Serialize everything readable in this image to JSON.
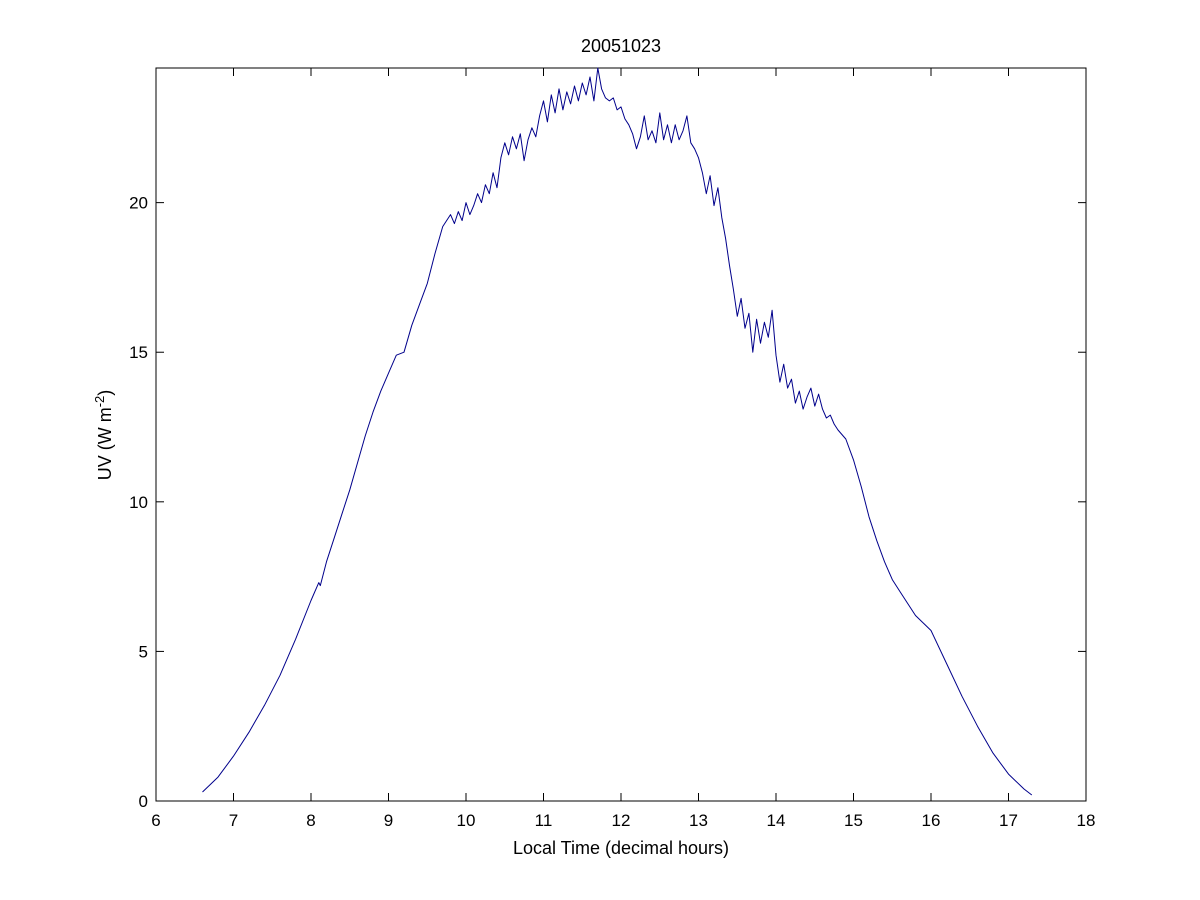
{
  "chart_data": {
    "type": "line",
    "title": "20051023",
    "xlabel": "Local Time (decimal hours)",
    "ylabel": {
      "main": "UV (W m",
      "superscript": "-2",
      "close": ")"
    },
    "xlim": [
      6,
      18
    ],
    "ylim": [
      0,
      24.5
    ],
    "xticks": [
      6,
      7,
      8,
      9,
      10,
      11,
      12,
      13,
      14,
      15,
      16,
      17,
      18
    ],
    "yticks": [
      0,
      5,
      10,
      15,
      20
    ],
    "grid": false,
    "legend": "none",
    "series": [
      {
        "color": "#00008b",
        "x": [
          6.6,
          6.8,
          7.0,
          7.2,
          7.4,
          7.6,
          7.8,
          8.0,
          8.1,
          8.12,
          8.2,
          8.3,
          8.4,
          8.5,
          8.6,
          8.7,
          8.8,
          8.9,
          9.0,
          9.1,
          9.2,
          9.3,
          9.4,
          9.5,
          9.6,
          9.7,
          9.8,
          9.85,
          9.9,
          9.95,
          10.0,
          10.05,
          10.1,
          10.15,
          10.2,
          10.25,
          10.3,
          10.35,
          10.4,
          10.45,
          10.5,
          10.55,
          10.6,
          10.65,
          10.7,
          10.75,
          10.8,
          10.85,
          10.9,
          10.95,
          11.0,
          11.05,
          11.1,
          11.15,
          11.2,
          11.25,
          11.3,
          11.35,
          11.4,
          11.45,
          11.5,
          11.55,
          11.6,
          11.65,
          11.7,
          11.75,
          11.8,
          11.85,
          11.9,
          11.95,
          12.0,
          12.05,
          12.1,
          12.15,
          12.2,
          12.25,
          12.3,
          12.35,
          12.4,
          12.45,
          12.5,
          12.55,
          12.6,
          12.65,
          12.7,
          12.75,
          12.8,
          12.85,
          12.9,
          12.95,
          13.0,
          13.05,
          13.1,
          13.15,
          13.2,
          13.25,
          13.3,
          13.35,
          13.4,
          13.45,
          13.5,
          13.55,
          13.6,
          13.65,
          13.7,
          13.75,
          13.8,
          13.85,
          13.9,
          13.95,
          14.0,
          14.05,
          14.1,
          14.15,
          14.2,
          14.25,
          14.3,
          14.35,
          14.4,
          14.45,
          14.5,
          14.55,
          14.6,
          14.65,
          14.7,
          14.75,
          14.8,
          14.9,
          15.0,
          15.1,
          15.2,
          15.3,
          15.4,
          15.5,
          15.6,
          15.7,
          15.8,
          16.0,
          16.2,
          16.4,
          16.6,
          16.8,
          17.0,
          17.2,
          17.3
        ],
        "y": [
          0.3,
          0.8,
          1.5,
          2.3,
          3.2,
          4.2,
          5.4,
          6.7,
          7.3,
          7.2,
          8.0,
          8.8,
          9.6,
          10.4,
          11.3,
          12.2,
          13.0,
          13.7,
          14.3,
          14.9,
          15.0,
          15.9,
          16.6,
          17.3,
          18.3,
          19.2,
          19.6,
          19.3,
          19.7,
          19.4,
          20.0,
          19.6,
          19.9,
          20.3,
          20.0,
          20.6,
          20.3,
          21.0,
          20.5,
          21.5,
          22.0,
          21.6,
          22.2,
          21.8,
          22.3,
          21.4,
          22.1,
          22.5,
          22.2,
          22.9,
          23.4,
          22.7,
          23.6,
          23.0,
          23.8,
          23.1,
          23.7,
          23.3,
          23.9,
          23.4,
          24.0,
          23.6,
          24.2,
          23.4,
          24.5,
          23.8,
          23.5,
          23.4,
          23.5,
          23.1,
          23.2,
          22.8,
          22.6,
          22.3,
          21.8,
          22.2,
          22.9,
          22.1,
          22.4,
          22.0,
          23.0,
          22.1,
          22.6,
          22.0,
          22.6,
          22.1,
          22.4,
          22.9,
          22.0,
          21.8,
          21.5,
          21.0,
          20.3,
          20.9,
          19.9,
          20.5,
          19.5,
          18.8,
          17.9,
          17.1,
          16.2,
          16.8,
          15.8,
          16.3,
          15.0,
          16.1,
          15.3,
          16.0,
          15.5,
          16.4,
          14.9,
          14.0,
          14.6,
          13.8,
          14.1,
          13.3,
          13.7,
          13.1,
          13.5,
          13.8,
          13.2,
          13.6,
          13.1,
          12.8,
          12.9,
          12.6,
          12.4,
          12.1,
          11.4,
          10.5,
          9.5,
          8.7,
          8.0,
          7.4,
          7.0,
          6.6,
          6.2,
          5.7,
          4.6,
          3.5,
          2.5,
          1.6,
          0.9,
          0.4,
          0.2
        ]
      }
    ]
  }
}
